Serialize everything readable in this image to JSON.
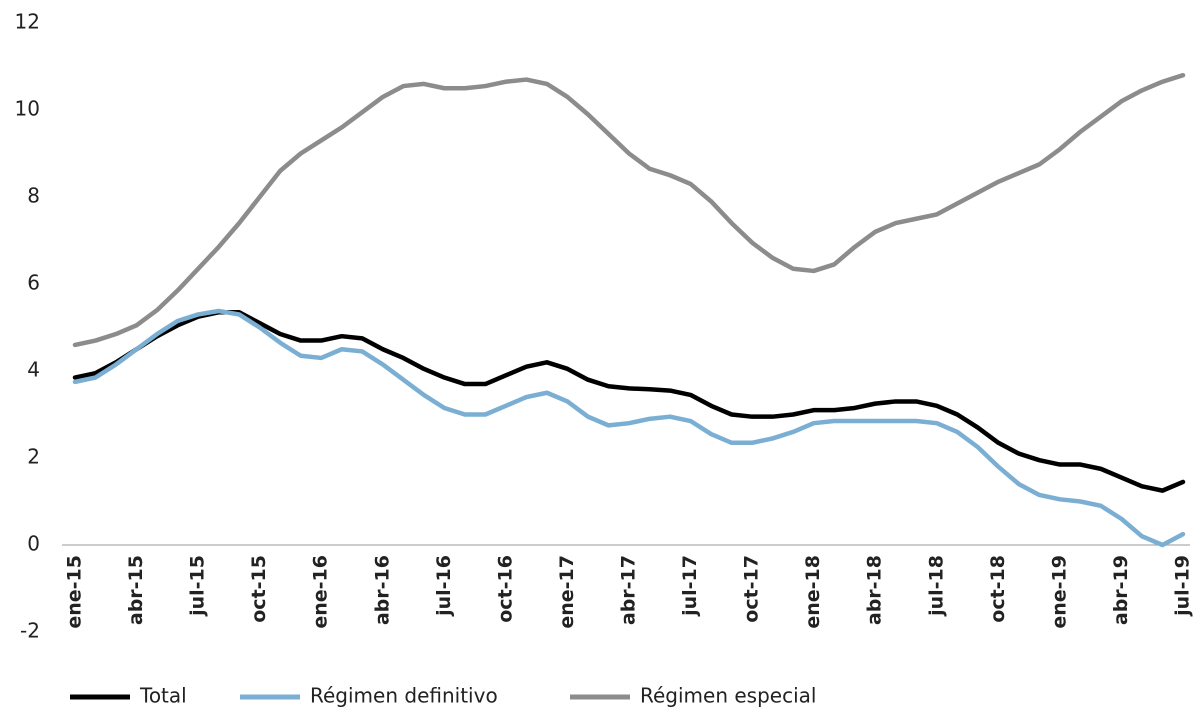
{
  "chart_data": {
    "type": "line",
    "categories": [
      "ene-15",
      null,
      null,
      "abr-15",
      null,
      null,
      "jul-15",
      null,
      null,
      "oct-15",
      null,
      null,
      "ene-16",
      null,
      null,
      "abr-16",
      null,
      null,
      "jul-16",
      null,
      null,
      "oct-16",
      null,
      null,
      "ene-17",
      null,
      null,
      "abr-17",
      null,
      null,
      "jul-17",
      null,
      null,
      "oct-17",
      null,
      null,
      "ene-18",
      null,
      null,
      "abr-18",
      null,
      null,
      "jul-18",
      null,
      null,
      "oct-18",
      null,
      null,
      "ene-19",
      null,
      null,
      "abr-19",
      null,
      null,
      "jul-19"
    ],
    "series": [
      {
        "name": "Total",
        "color": "#000000",
        "values": [
          3.85,
          3.95,
          4.2,
          4.5,
          4.8,
          5.05,
          5.25,
          5.35,
          5.35,
          5.1,
          4.85,
          4.7,
          4.7,
          4.8,
          4.75,
          4.5,
          4.3,
          4.05,
          3.85,
          3.7,
          3.7,
          3.9,
          4.1,
          4.2,
          4.05,
          3.8,
          3.65,
          3.6,
          3.58,
          3.55,
          3.45,
          3.2,
          3.0,
          2.95,
          2.95,
          3.0,
          3.1,
          3.1,
          3.15,
          3.25,
          3.3,
          3.3,
          3.2,
          3.0,
          2.7,
          2.35,
          2.1,
          1.95,
          1.85,
          1.85,
          1.75,
          1.55,
          1.35,
          1.25,
          1.45
        ]
      },
      {
        "name": "Régimen definitivo",
        "color": "#7aafd3",
        "values": [
          3.75,
          3.85,
          4.15,
          4.5,
          4.85,
          5.15,
          5.3,
          5.38,
          5.3,
          5.0,
          4.65,
          4.35,
          4.3,
          4.5,
          4.45,
          4.15,
          3.8,
          3.45,
          3.15,
          3.0,
          3.0,
          3.2,
          3.4,
          3.5,
          3.3,
          2.95,
          2.75,
          2.8,
          2.9,
          2.95,
          2.85,
          2.55,
          2.35,
          2.35,
          2.45,
          2.6,
          2.8,
          2.85,
          2.85,
          2.85,
          2.85,
          2.85,
          2.8,
          2.6,
          2.25,
          1.8,
          1.4,
          1.15,
          1.05,
          1.0,
          0.9,
          0.6,
          0.2,
          0.0,
          0.25
        ]
      },
      {
        "name": "Régimen especial",
        "color": "#8c8c8c",
        "values": [
          4.6,
          4.7,
          4.85,
          5.05,
          5.4,
          5.85,
          6.35,
          6.85,
          7.4,
          8.0,
          8.6,
          9.0,
          9.3,
          9.6,
          9.95,
          10.3,
          10.55,
          10.6,
          10.5,
          10.5,
          10.55,
          10.65,
          10.7,
          10.6,
          10.3,
          9.9,
          9.45,
          9.0,
          8.65,
          8.5,
          8.3,
          7.9,
          7.4,
          6.95,
          6.6,
          6.35,
          6.3,
          6.45,
          6.85,
          7.2,
          7.4,
          7.5,
          7.6,
          7.85,
          8.1,
          8.35,
          8.55,
          8.75,
          9.1,
          9.5,
          9.85,
          10.2,
          10.45,
          10.65,
          10.8
        ]
      }
    ],
    "ylim": [
      -2,
      12
    ],
    "yticks": [
      -2,
      0,
      2,
      4,
      6,
      8,
      10,
      12
    ],
    "grid": false,
    "legend": "bottom"
  }
}
